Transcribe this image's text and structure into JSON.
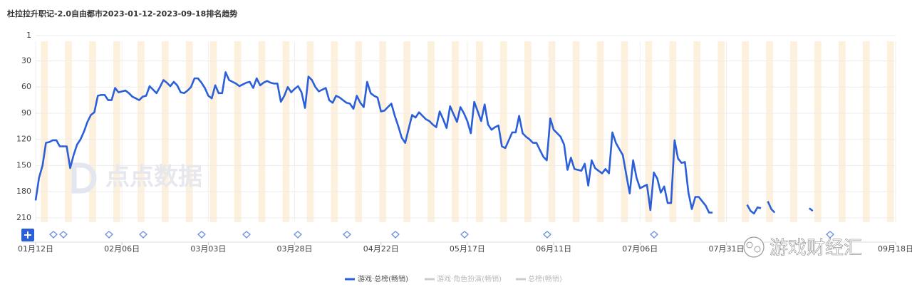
{
  "chart_data": {
    "type": "line",
    "title": "杜拉拉升职记-2.0自由都市2023-01-12-2023-09-18排名趋势",
    "ylim": [
      1,
      215
    ],
    "y_reversed": true,
    "yticks": [
      1,
      30,
      60,
      90,
      120,
      150,
      180,
      210
    ],
    "xlim": [
      0,
      249
    ],
    "xticks": [
      {
        "value": 0,
        "label": "01月12日"
      },
      {
        "value": 25,
        "label": "02月06日"
      },
      {
        "value": 50,
        "label": "03月03日"
      },
      {
        "value": 75,
        "label": "03月28日"
      },
      {
        "value": 100,
        "label": "04月22日"
      },
      {
        "value": 125,
        "label": "05月17日"
      },
      {
        "value": 150,
        "label": "06月11日"
      },
      {
        "value": 175,
        "label": "07月06日"
      },
      {
        "value": 200,
        "label": "07月31日"
      },
      {
        "value": 249,
        "label": "09月18日"
      }
    ],
    "grid": true,
    "series": [
      {
        "name": "游戏·总榜(畅销)",
        "color": "#2b5fd9",
        "values": [
          190,
          164,
          150,
          124,
          123,
          121,
          121,
          128,
          128,
          128,
          153,
          138,
          126,
          120,
          111,
          100,
          92,
          89,
          70,
          69,
          69,
          75,
          75,
          61,
          66,
          65,
          64,
          67,
          71,
          73,
          75,
          71,
          70,
          59,
          63,
          67,
          60,
          52,
          55,
          59,
          54,
          58,
          66,
          67,
          64,
          60,
          50,
          50,
          55,
          61,
          70,
          73,
          58,
          67,
          67,
          43,
          52,
          54,
          56,
          59,
          57,
          55,
          54,
          61,
          50,
          58,
          55,
          53,
          55,
          56,
          56,
          77,
          70,
          60,
          66,
          62,
          59,
          66,
          84,
          48,
          52,
          60,
          65,
          63,
          61,
          75,
          78,
          70,
          72,
          75,
          78,
          79,
          85,
          70,
          78,
          83,
          54,
          67,
          70,
          72,
          88,
          87,
          83,
          79,
          93,
          105,
          118,
          124,
          108,
          92,
          95,
          89,
          93,
          97,
          99,
          103,
          106,
          88,
          97,
          107,
          82,
          91,
          100,
          83,
          90,
          99,
          113,
          77,
          88,
          99,
          80,
          103,
          109,
          106,
          104,
          128,
          130,
          121,
          112,
          112,
          93,
          113,
          117,
          120,
          124,
          124,
          132,
          140,
          144,
          96,
          109,
          113,
          117,
          126,
          155,
          141,
          154,
          155,
          156,
          148,
          173,
          144,
          153,
          156,
          159,
          154,
          159,
          112,
          124,
          131,
          138,
          160,
          182,
          144,
          164,
          176,
          174,
          172,
          201,
          158,
          165,
          181,
          174,
          193,
          193,
          121,
          142,
          147,
          146,
          181,
          200,
          186,
          186,
          191,
          196,
          204,
          204,
          null,
          null,
          null,
          null,
          null,
          null,
          null,
          null,
          null,
          195,
          202,
          205,
          198,
          199,
          null,
          191,
          200,
          204,
          null,
          null,
          null,
          null,
          null,
          null,
          null,
          null,
          null,
          199,
          202,
          null,
          null,
          null,
          null,
          null,
          null,
          null,
          null,
          null,
          null,
          null,
          null,
          null,
          null,
          null,
          null,
          null,
          null,
          null,
          null,
          null,
          null,
          null,
          null
        ]
      }
    ],
    "inactive_series": [
      {
        "name": "游戏·角色扮演(畅销)",
        "color": "#cccccc"
      },
      {
        "name": "总榜(畅销)",
        "color": "#cccccc"
      }
    ],
    "watermarks": [
      "点点数据",
      "游戏财经汇"
    ]
  }
}
